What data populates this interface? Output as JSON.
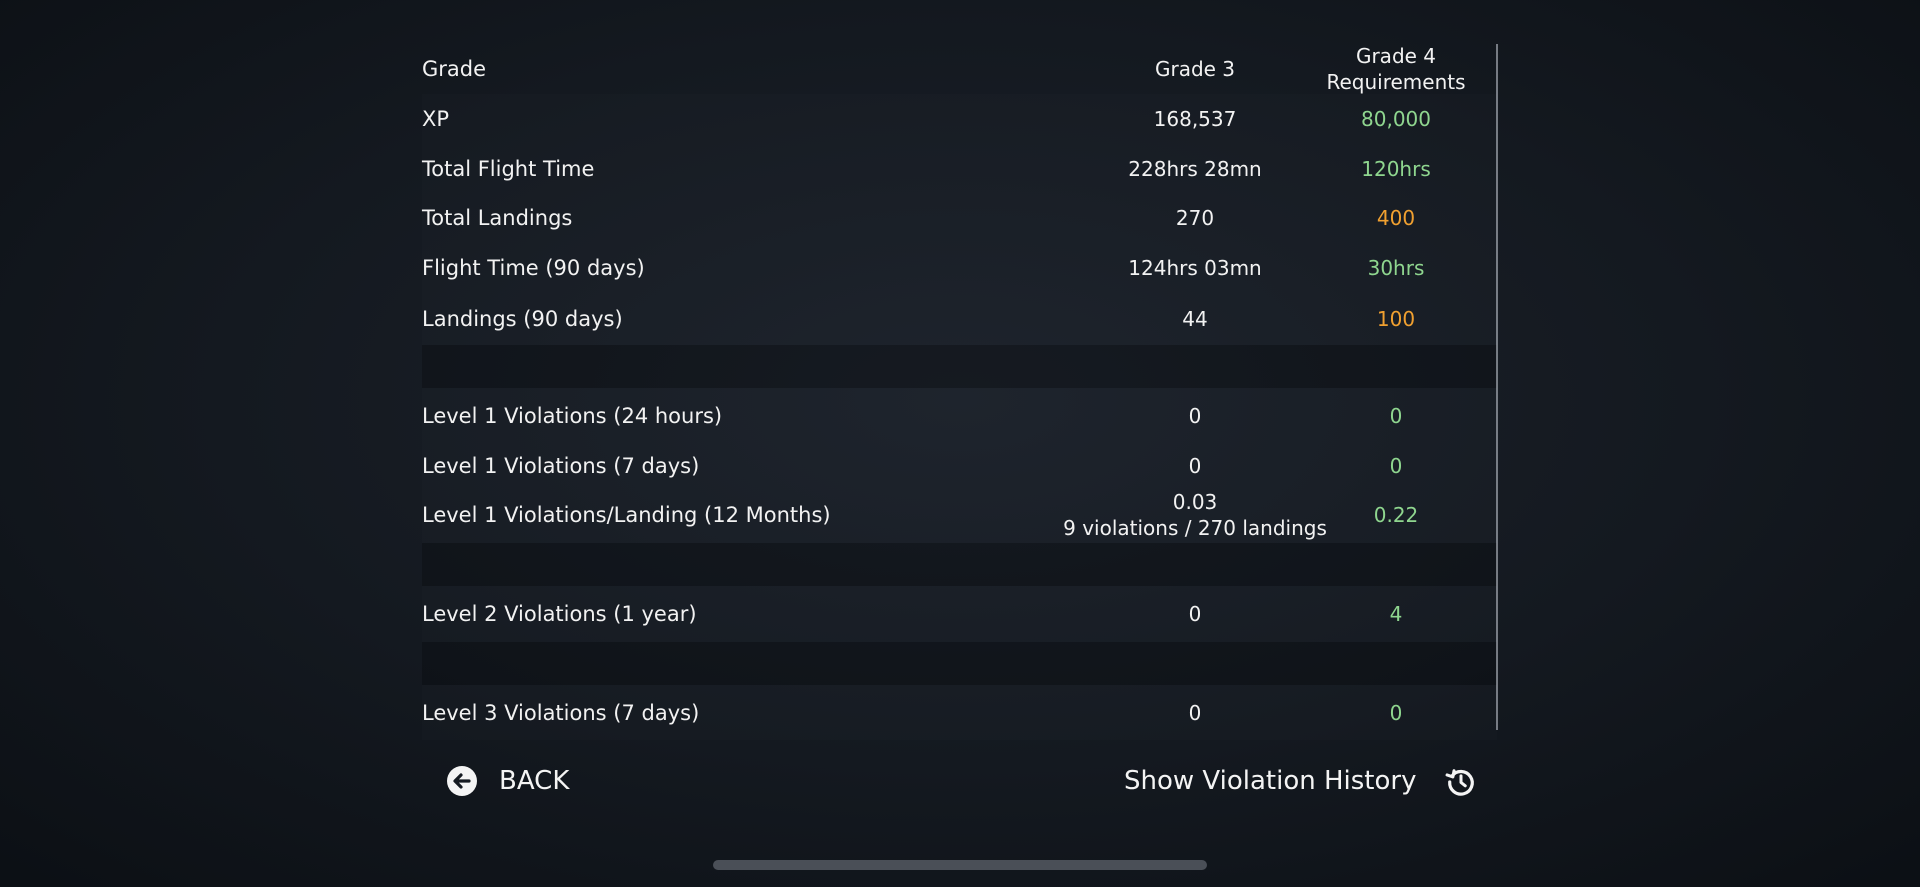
{
  "table": {
    "header": {
      "label": "Grade",
      "current": "Grade 3",
      "next_line1": "Grade 4",
      "next_line2": "Requirements"
    },
    "rows": [
      {
        "label": "XP",
        "current": "168,537",
        "required": "80,000",
        "status": "met"
      },
      {
        "label": "Total Flight Time",
        "current": "228hrs 28mn",
        "required": "120hrs",
        "status": "met"
      },
      {
        "label": "Total Landings",
        "current": "270",
        "required": "400",
        "status": "unmet"
      },
      {
        "label": "Flight Time (90 days)",
        "current": "124hrs 03mn",
        "required": "30hrs",
        "status": "met"
      },
      {
        "label": "Landings (90 days)",
        "current": "44",
        "required": "100",
        "status": "unmet"
      },
      {
        "label": "Level 1 Violations (24 hours)",
        "current": "0",
        "required": "0",
        "status": "met"
      },
      {
        "label": "Level 1 Violations (7 days)",
        "current": "0",
        "required": "0",
        "status": "met"
      },
      {
        "label": "Level 1 Violations/Landing (12 Months)",
        "current": "0.03",
        "current_detail": "9 violations / 270 landings",
        "required": "0.22",
        "status": "met"
      },
      {
        "label": "Level 2 Violations (1 year)",
        "current": "0",
        "required": "4",
        "status": "met"
      },
      {
        "label": "Level 3 Violations (7 days)",
        "current": "0",
        "required": "0",
        "status": "met"
      }
    ]
  },
  "footer": {
    "back_label": "BACK",
    "back_icon": "arrow-left-circle-icon",
    "history_label": "Show Violation History",
    "history_icon": "history-clock-icon"
  },
  "colors": {
    "met": "#8fd68f",
    "unmet": "#f0a030",
    "text": "#f2f2f2"
  }
}
